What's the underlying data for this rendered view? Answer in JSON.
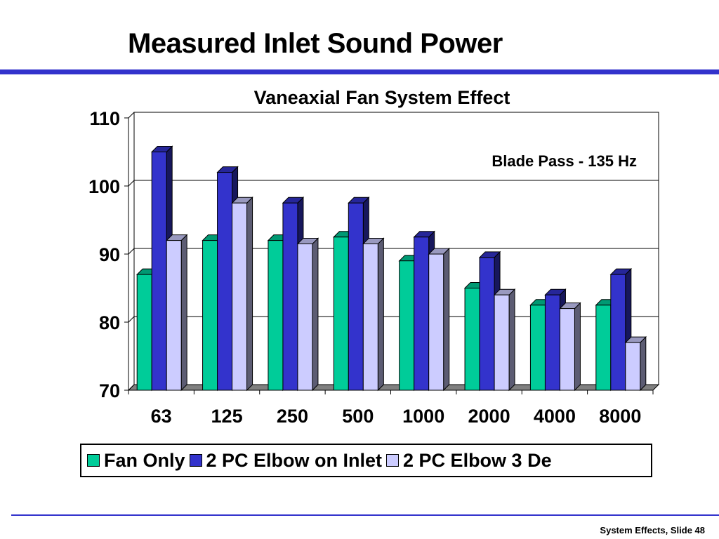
{
  "slide": {
    "title": "Measured Inlet Sound Power",
    "footer": "System Effects, Slide 48"
  },
  "chart_data": {
    "type": "bar",
    "title": "Vaneaxial Fan System Effect",
    "annotation": "Blade Pass - 135 Hz",
    "categories": [
      "63",
      "125",
      "250",
      "500",
      "1000",
      "2000",
      "4000",
      "8000"
    ],
    "series": [
      {
        "name": "Fan Only",
        "color": "#00cc99",
        "values": [
          87,
          92,
          92,
          92.5,
          89,
          85,
          82.5,
          82.5
        ]
      },
      {
        "name": "2 PC Elbow on Inlet",
        "color": "#3333cc",
        "values": [
          105,
          102,
          97.5,
          97.5,
          92.5,
          89.5,
          84,
          87
        ]
      },
      {
        "name": "2 PC Elbow 3 De",
        "color": "#ccccff",
        "values": [
          92,
          97.5,
          91.5,
          91.5,
          90,
          84,
          82,
          77
        ]
      }
    ],
    "ylim": [
      70,
      110
    ],
    "yticks": [
      "70",
      "80",
      "90",
      "100",
      "110"
    ],
    "grid": true,
    "style": "3d-clustered-bar",
    "legend": "bottom"
  }
}
